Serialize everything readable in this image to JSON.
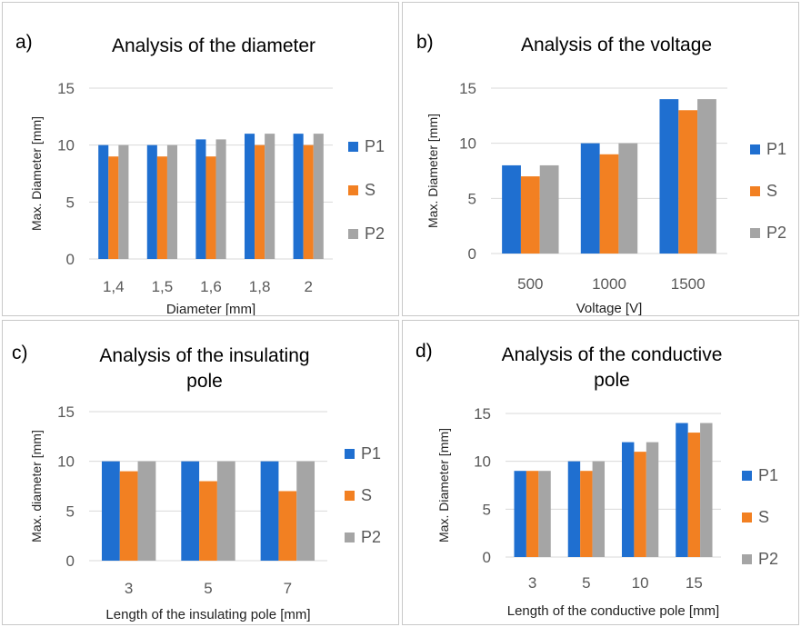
{
  "colors": {
    "P1": "#1f6fd0",
    "S": "#f28022",
    "P2": "#a5a5a5",
    "grid": "#d9d9d9",
    "text": "#595959"
  },
  "chart_data": [
    {
      "type": "bar",
      "panel_label": "a)",
      "title": [
        "Analysis of the diameter"
      ],
      "xlabel": "Diameter [mm]",
      "ylabel": "Max. Diameter [mm]",
      "ylim": [
        0,
        15
      ],
      "yticks": [
        0,
        5,
        10,
        15
      ],
      "grid": true,
      "legend": "right",
      "categories": [
        "1,4",
        "1,5",
        "1,6",
        "1,8",
        "2"
      ],
      "series": [
        {
          "name": "P1",
          "values": [
            10,
            10,
            10.5,
            11,
            11
          ]
        },
        {
          "name": "S",
          "values": [
            9,
            9,
            9,
            10,
            10
          ]
        },
        {
          "name": "P2",
          "values": [
            10,
            10,
            10.5,
            11,
            11
          ]
        }
      ]
    },
    {
      "type": "bar",
      "panel_label": "b)",
      "title": [
        "Analysis of the voltage"
      ],
      "xlabel": "Voltage [V]",
      "ylabel": "Max. Diameter [mm]",
      "ylim": [
        0,
        15
      ],
      "yticks": [
        0,
        5,
        10,
        15
      ],
      "grid": true,
      "legend": "right",
      "categories": [
        "500",
        "1000",
        "1500"
      ],
      "series": [
        {
          "name": "P1",
          "values": [
            8,
            10,
            14
          ]
        },
        {
          "name": "S",
          "values": [
            7,
            9,
            13
          ]
        },
        {
          "name": "P2",
          "values": [
            8,
            10,
            14
          ]
        }
      ]
    },
    {
      "type": "bar",
      "panel_label": "c)",
      "title": [
        "Analysis of the insulating",
        "pole"
      ],
      "xlabel": "Length of the insulating pole [mm]",
      "ylabel": "Max. diameter [mm]",
      "ylim": [
        0,
        15
      ],
      "yticks": [
        0,
        5,
        10,
        15
      ],
      "grid": true,
      "legend": "right",
      "categories": [
        "3",
        "5",
        "7"
      ],
      "series": [
        {
          "name": "P1",
          "values": [
            10,
            10,
            10
          ]
        },
        {
          "name": "S",
          "values": [
            9,
            8,
            7
          ]
        },
        {
          "name": "P2",
          "values": [
            10,
            10,
            10
          ]
        }
      ]
    },
    {
      "type": "bar",
      "panel_label": "d)",
      "title": [
        "Analysis of the conductive",
        "pole"
      ],
      "xlabel": "Length of the conductive pole [mm]",
      "ylabel": "Max. Diameter [mm]",
      "ylim": [
        0,
        15
      ],
      "yticks": [
        0,
        5,
        10,
        15
      ],
      "grid": true,
      "legend": "right",
      "categories": [
        "3",
        "5",
        "10",
        "15"
      ],
      "series": [
        {
          "name": "P1",
          "values": [
            9,
            10,
            12,
            14
          ]
        },
        {
          "name": "S",
          "values": [
            9,
            9,
            11,
            13
          ]
        },
        {
          "name": "P2",
          "values": [
            9,
            10,
            12,
            14
          ]
        }
      ]
    }
  ]
}
